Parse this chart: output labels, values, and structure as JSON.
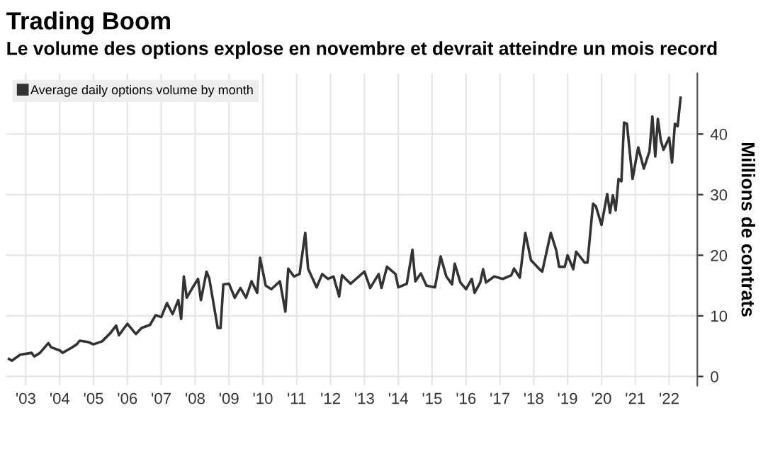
{
  "chart_data": {
    "type": "line",
    "title": "Trading Boom",
    "subtitle": "Le volume des options explose en novembre et devrait atteindre un mois record",
    "ylabel": "Millions de contrats",
    "x": [
      "2003-01",
      "2003-02",
      "2003-05",
      "2003-09",
      "2003-10",
      "2003-12",
      "2004-03",
      "2004-04",
      "2004-07",
      "2004-08",
      "2004-11",
      "2005-01",
      "2005-02",
      "2005-05",
      "2005-07",
      "2005-10",
      "2006-01",
      "2006-03",
      "2006-04",
      "2006-07",
      "2006-10",
      "2006-12",
      "2007-03",
      "2007-05",
      "2007-07",
      "2007-09",
      "2007-11",
      "2008-01",
      "2008-02",
      "2008-03",
      "2008-04",
      "2008-06",
      "2008-08",
      "2008-09",
      "2008-11",
      "2008-12",
      "2009-03",
      "2009-04",
      "2009-05",
      "2009-07",
      "2009-09",
      "2009-11",
      "2010-01",
      "2010-03",
      "2010-05",
      "2010-06",
      "2010-08",
      "2010-10",
      "2011-01",
      "2011-03",
      "2011-04",
      "2011-06",
      "2011-08",
      "2011-10",
      "2011-11",
      "2012-02",
      "2012-04",
      "2012-06",
      "2012-08",
      "2012-10",
      "2012-11",
      "2013-02",
      "2013-04",
      "2013-07",
      "2013-09",
      "2013-12",
      "2014-01",
      "2014-03",
      "2014-06",
      "2014-07",
      "2014-10",
      "2014-12",
      "2015-01",
      "2015-03",
      "2015-05",
      "2015-08",
      "2015-10",
      "2015-12",
      "2016-02",
      "2016-03",
      "2016-05",
      "2016-07",
      "2016-09",
      "2016-10",
      "2016-12",
      "2017-01",
      "2017-02",
      "2017-05",
      "2017-08",
      "2017-11",
      "2017-12",
      "2018-02",
      "2018-04",
      "2018-06",
      "2018-09",
      "2018-10",
      "2019-01",
      "2019-03",
      "2019-04",
      "2019-06",
      "2019-07",
      "2019-09",
      "2019-10",
      "2020-01",
      "2020-02",
      "2020-04",
      "2020-05",
      "2020-07",
      "2020-09",
      "2020-10",
      "2020-11",
      "2020-12",
      "2021-01",
      "2021-02",
      "2021-03",
      "2021-04",
      "2021-06",
      "2021-08",
      "2021-10",
      "2021-12",
      "2022-01",
      "2022-02",
      "2022-03",
      "2022-04",
      "2022-05",
      "2022-07",
      "2022-08",
      "2022-09",
      "2022-10",
      "2022-11"
    ],
    "series": [
      {
        "name": "Average daily options volume by month",
        "color": "#333333",
        "values": [
          2.9,
          2.6,
          3.6,
          3.9,
          3.3,
          3.9,
          5.5,
          4.8,
          4.3,
          3.9,
          4.7,
          5.3,
          5.9,
          5.7,
          5.3,
          5.8,
          7.2,
          8.4,
          6.8,
          8.7,
          7.0,
          8.0,
          8.5,
          10.1,
          9.8,
          12.1,
          10.3,
          12.6,
          9.5,
          16.5,
          13.0,
          14.6,
          16.1,
          12.6,
          17.3,
          16.1,
          8.0,
          8.0,
          15.2,
          15.3,
          13.0,
          14.6,
          13.0,
          15.7,
          13.8,
          19.6,
          15.0,
          14.4,
          15.7,
          10.7,
          17.8,
          16.5,
          16.9,
          23.7,
          17.8,
          14.7,
          16.9,
          16.1,
          16.5,
          13.2,
          16.7,
          15.3,
          16.1,
          17.3,
          14.6,
          16.9,
          14.6,
          18.1,
          16.9,
          14.7,
          15.3,
          20.9,
          15.7,
          17.0,
          15.0,
          14.7,
          19.8,
          16.5,
          15.2,
          18.6,
          15.5,
          14.4,
          16.1,
          13.8,
          15.5,
          17.7,
          15.5,
          16.5,
          16.1,
          16.7,
          17.8,
          16.3,
          23.7,
          19.2,
          17.7,
          17.3,
          23.7,
          20.8,
          18.1,
          18.1,
          20.0,
          17.7,
          20.6,
          18.8,
          18.8,
          28.5,
          28.1,
          25.0,
          30.1,
          27.0,
          29.9,
          27.4,
          32.6,
          32.2,
          41.9,
          41.7,
          32.6,
          37.8,
          34.3,
          37.2,
          42.9,
          36.3,
          42.5,
          39.0,
          37.4,
          39.4,
          35.3,
          41.7,
          41.3,
          46.0
        ]
      }
    ],
    "xlim": [
      "2002-12",
      "2023-05"
    ],
    "ylim": [
      -1.5,
      50
    ],
    "xticks": [
      {
        "value": "2003-07",
        "label": "'03"
      },
      {
        "value": "2004-07",
        "label": "'04"
      },
      {
        "value": "2005-07",
        "label": "'05"
      },
      {
        "value": "2006-07",
        "label": "'06"
      },
      {
        "value": "2007-07",
        "label": "'07"
      },
      {
        "value": "2008-07",
        "label": "'08"
      },
      {
        "value": "2009-07",
        "label": "'09"
      },
      {
        "value": "2010-07",
        "label": "'10"
      },
      {
        "value": "2011-07",
        "label": "'11"
      },
      {
        "value": "2012-07",
        "label": "'12"
      },
      {
        "value": "2013-07",
        "label": "'13"
      },
      {
        "value": "2014-07",
        "label": "'14"
      },
      {
        "value": "2015-07",
        "label": "'15"
      },
      {
        "value": "2016-07",
        "label": "'16"
      },
      {
        "value": "2017-07",
        "label": "'17"
      },
      {
        "value": "2018-07",
        "label": "'18"
      },
      {
        "value": "2019-07",
        "label": "'19"
      },
      {
        "value": "2020-07",
        "label": "'20"
      },
      {
        "value": "2021-07",
        "label": "'21"
      },
      {
        "value": "2022-07",
        "label": "'22"
      }
    ],
    "yticks": [
      0,
      10,
      20,
      30,
      40
    ],
    "grid": true,
    "legend": "top left",
    "marker": "none",
    "line_style": "solid"
  }
}
